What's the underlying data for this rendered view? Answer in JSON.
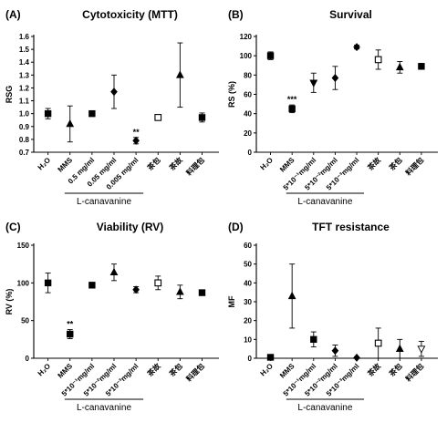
{
  "chart_data": [
    {
      "panel": "(A)",
      "title": "Cytotoxicity (MTT)",
      "type": "scatter",
      "ylabel": "RSG",
      "ylim": [
        0.7,
        1.6
      ],
      "yticks": [
        "0.7",
        "0.8",
        "0.9",
        "1.0",
        "1.1",
        "1.2",
        "1.3",
        "1.4",
        "1.5",
        "1.6"
      ],
      "categories": [
        "H₂O",
        "MMS",
        "0.5 mg/ml",
        "0.05 mg/ml",
        "0.005 mg/ml",
        "茶包",
        "茶故",
        "料理包"
      ],
      "markers": [
        "square",
        "triangle-up",
        "square",
        "diamond",
        "diamond",
        "square-open",
        "triangle-up",
        "square"
      ],
      "values": [
        1.0,
        0.92,
        1.0,
        1.17,
        0.79,
        0.97,
        1.3,
        0.97
      ],
      "errors": [
        0.04,
        0.14,
        0.015,
        0.13,
        0.025,
        0.015,
        0.25,
        0.035
      ],
      "annotations": [
        {
          "index": 4,
          "text": "**"
        }
      ],
      "group_label": "L-canavanine",
      "group_span": [
        2,
        4
      ]
    },
    {
      "panel": "(B)",
      "title": "Survival",
      "type": "scatter",
      "ylabel": "RS (%)",
      "ylim": [
        0,
        120
      ],
      "yticks": [
        "0",
        "20",
        "40",
        "60",
        "80",
        "100",
        "120"
      ],
      "categories": [
        "H₂O",
        "MMS",
        "5*10⁻¹mg/ml",
        "5*10⁻²mg/ml",
        "5*10⁻³mg/ml",
        "茶故",
        "茶包",
        "料理包"
      ],
      "markers": [
        "square",
        "square",
        "triangle-down",
        "diamond",
        "diamond",
        "square-open",
        "triangle-up",
        "square"
      ],
      "values": [
        100,
        45,
        72,
        77,
        109,
        96,
        88,
        89
      ],
      "errors": [
        4,
        4,
        10,
        12,
        2,
        10,
        6,
        3
      ],
      "annotations": [
        {
          "index": 1,
          "text": "***"
        }
      ],
      "group_label": "L-canavanine",
      "group_span": [
        2,
        4
      ]
    },
    {
      "panel": "(C)",
      "title": "Viability (RV)",
      "type": "scatter",
      "ylabel": "RV (%)",
      "ylim": [
        0,
        150
      ],
      "yticks": [
        "0",
        "50",
        "100",
        "150"
      ],
      "categories": [
        "H₂O",
        "MMS",
        "5*10⁻¹mg/ml",
        "5*10⁻²mg/ml",
        "5*10⁻³mg/ml",
        "茶故",
        "茶包",
        "料理包"
      ],
      "markers": [
        "square",
        "square",
        "square",
        "triangle-up",
        "diamond",
        "square-open",
        "triangle-up",
        "square"
      ],
      "values": [
        100,
        32,
        97,
        114,
        91,
        100,
        88,
        87
      ],
      "errors": [
        13,
        6,
        2,
        11,
        4,
        9,
        9,
        2
      ],
      "annotations": [
        {
          "index": 1,
          "text": "**"
        }
      ],
      "group_label": "L-canavanine",
      "group_span": [
        2,
        4
      ]
    },
    {
      "panel": "(D)",
      "title": "TFT resistance",
      "type": "scatter",
      "ylabel": "MF",
      "ylim": [
        0,
        60
      ],
      "yticks": [
        "0",
        "10",
        "20",
        "30",
        "40",
        "50",
        "60"
      ],
      "categories": [
        "H₂O",
        "MMS",
        "5*10⁻¹mg/ml",
        "5*10⁻²mg/ml",
        "5*10⁻³mg/ml",
        "茶故",
        "茶包",
        "料理包"
      ],
      "markers": [
        "square",
        "triangle-up",
        "square",
        "diamond",
        "diamond",
        "square-open",
        "triangle-up",
        "triangle-down-open"
      ],
      "values": [
        0.5,
        33,
        10,
        4,
        0.3,
        8,
        5,
        5
      ],
      "errors": [
        0.3,
        17,
        4,
        3,
        0.3,
        8,
        5,
        4
      ],
      "annotations": [],
      "group_label": "L-canavanine",
      "group_span": [
        2,
        4
      ]
    }
  ]
}
